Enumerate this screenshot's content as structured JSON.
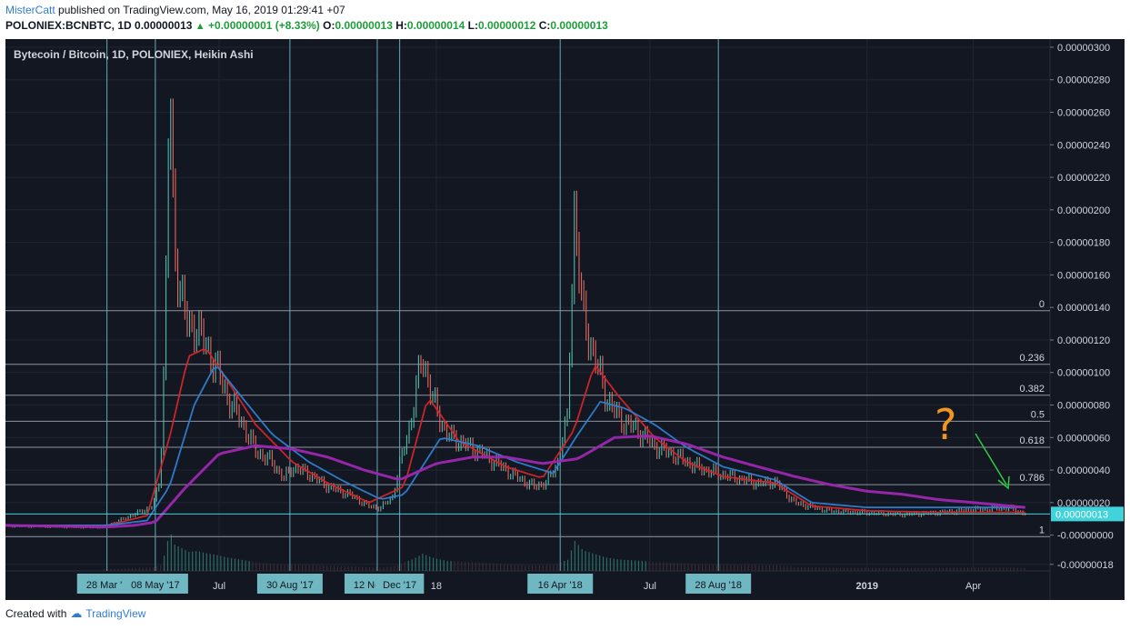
{
  "header": {
    "author": "MisterCatt",
    "published_text": "published on TradingView.com, May 16, 2019 01:29:41 +07",
    "symbol": "POLONIEX:BCNBTC, 1D",
    "last": "0.00000013",
    "change": "+0.00000001 (+8.33%)",
    "open_label": "O:",
    "open": "0.00000013",
    "high_label": "H:",
    "high": "0.00000014",
    "low_label": "L:",
    "low": "0.00000012",
    "close_label": "C:",
    "close": "0.00000013"
  },
  "footer": {
    "created_with": "Created with",
    "brand": "TradingView"
  },
  "colors": {
    "background": "#131722",
    "grid": "#1f2633",
    "candle_up": "#53b9a7",
    "candle_down": "#e0675f",
    "ma_red": "#d2262b",
    "ma_blue": "#2e7fd0",
    "ma_purple": "#9c27b0",
    "fib": "#8d939f",
    "vline": "#65aab4",
    "price_line": "#41d3dc",
    "question": "#f29422",
    "arrow": "#2ecc40"
  },
  "chart_data": {
    "type": "line",
    "title": "Bytecoin / Bitcoin, 1D, POLONIEX, Heikin Ashi",
    "y_ticks": [
      "0.00000300",
      "0.00000280",
      "0.00000260",
      "0.00000240",
      "0.00000220",
      "0.00000200",
      "0.00000180",
      "0.00000160",
      "0.00000140",
      "0.00000120",
      "0.00000100",
      "0.00000080",
      "0.00000060",
      "0.00000040",
      "0.00000020",
      "-0.00000000",
      "-0.00000018"
    ],
    "y_tick_values": [
      300,
      280,
      260,
      240,
      220,
      200,
      180,
      160,
      140,
      120,
      100,
      80,
      60,
      40,
      20,
      0,
      -18
    ],
    "y_unit_note": "values in 1e-8 BTC",
    "ylim": [
      -22,
      305
    ],
    "x_range": [
      "2017-01-01",
      "2019-06-05"
    ],
    "x_ticks": [
      {
        "date": "2017-07-01",
        "label": "Jul"
      },
      {
        "date": "2018-01-01",
        "label": "18"
      },
      {
        "date": "2018-07-01",
        "label": "Jul"
      },
      {
        "date": "2019-01-01",
        "label": "2019"
      },
      {
        "date": "2019-04-01",
        "label": "Apr"
      }
    ],
    "vertical_markers": [
      {
        "date": "2017-03-28",
        "label": "28 Mar '1"
      },
      {
        "date": "2017-05-08",
        "label": "08 May '17"
      },
      {
        "date": "2017-08-30",
        "label": "30 Aug '17"
      },
      {
        "date": "2017-11-12",
        "label": "12 Nov '17"
      },
      {
        "date": "2017-12-01",
        "label": "Dec '17"
      },
      {
        "date": "2018-04-16",
        "label": "16 Apr '18"
      },
      {
        "date": "2018-08-28",
        "label": "28 Aug '18"
      }
    ],
    "fib_levels": [
      {
        "label": "0",
        "value": 138
      },
      {
        "label": "0.236",
        "value": 105
      },
      {
        "label": "0.382",
        "value": 86
      },
      {
        "label": "0.5",
        "value": 70
      },
      {
        "label": "0.618",
        "value": 54
      },
      {
        "label": "0.786",
        "value": 31
      },
      {
        "label": "1",
        "value": -1
      }
    ],
    "current_price": {
      "label": "0.00000013",
      "value": 13
    },
    "price_series": {
      "x": [
        "2017-01-01",
        "2017-03-20",
        "2017-03-28",
        "2017-04-20",
        "2017-05-06",
        "2017-05-12",
        "2017-05-16",
        "2017-05-20",
        "2017-05-24",
        "2017-05-30",
        "2017-06-05",
        "2017-06-12",
        "2017-06-20",
        "2017-06-28",
        "2017-07-08",
        "2017-07-20",
        "2017-08-01",
        "2017-08-15",
        "2017-08-25",
        "2017-09-01",
        "2017-09-15",
        "2017-10-01",
        "2017-10-20",
        "2017-11-05",
        "2017-11-15",
        "2017-11-25",
        "2017-12-05",
        "2017-12-12",
        "2017-12-20",
        "2017-12-28",
        "2018-01-10",
        "2018-01-20",
        "2018-02-05",
        "2018-02-20",
        "2018-03-10",
        "2018-03-25",
        "2018-04-05",
        "2018-04-14",
        "2018-04-18",
        "2018-04-22",
        "2018-04-28",
        "2018-05-05",
        "2018-05-15",
        "2018-05-25",
        "2018-06-05",
        "2018-06-20",
        "2018-07-05",
        "2018-07-20",
        "2018-08-10",
        "2018-08-28",
        "2018-09-15",
        "2018-10-01",
        "2018-10-15",
        "2018-11-01",
        "2018-12-01",
        "2019-01-01",
        "2019-02-01",
        "2019-03-01",
        "2019-04-01",
        "2019-05-01",
        "2019-05-16"
      ],
      "values": [
        6,
        5,
        6,
        13,
        18,
        35,
        120,
        280,
        175,
        150,
        125,
        130,
        115,
        105,
        85,
        70,
        52,
        45,
        35,
        42,
        38,
        30,
        25,
        18,
        17,
        24,
        55,
        75,
        112,
        85,
        62,
        58,
        52,
        45,
        36,
        30,
        33,
        45,
        60,
        70,
        200,
        135,
        110,
        85,
        72,
        65,
        55,
        50,
        42,
        38,
        35,
        32,
        33,
        20,
        15,
        14,
        13,
        14,
        16,
        17,
        13
      ]
    },
    "series": [
      {
        "name": "",
        "role": "fast MA",
        "color": "#d2262b",
        "x": [
          "2017-01-01",
          "2017-03-28",
          "2017-05-01",
          "2017-05-20",
          "2017-06-05",
          "2017-06-20",
          "2017-07-08",
          "2017-08-01",
          "2017-09-01",
          "2017-10-01",
          "2017-11-05",
          "2017-12-05",
          "2017-12-25",
          "2018-01-20",
          "2018-03-01",
          "2018-04-01",
          "2018-04-28",
          "2018-05-15",
          "2018-06-05",
          "2018-07-05",
          "2018-08-01",
          "2018-09-01",
          "2018-10-15",
          "2018-11-15",
          "2019-01-01",
          "2019-03-01",
          "2019-05-16"
        ],
        "values": [
          6,
          6,
          12,
          60,
          110,
          115,
          95,
          68,
          45,
          32,
          20,
          30,
          85,
          58,
          42,
          35,
          65,
          105,
          85,
          60,
          45,
          36,
          32,
          18,
          15,
          14,
          14
        ]
      },
      {
        "name": "",
        "role": "medium MA",
        "color": "#2e7fd0",
        "x": [
          "2017-01-01",
          "2017-03-28",
          "2017-05-01",
          "2017-05-20",
          "2017-06-10",
          "2017-06-28",
          "2017-07-20",
          "2017-08-15",
          "2017-09-15",
          "2017-10-15",
          "2017-11-15",
          "2017-12-05",
          "2018-01-05",
          "2018-02-05",
          "2018-03-10",
          "2018-04-10",
          "2018-05-01",
          "2018-05-20",
          "2018-06-10",
          "2018-07-05",
          "2018-08-01",
          "2018-09-01",
          "2018-10-15",
          "2018-11-15",
          "2019-01-01",
          "2019-03-01",
          "2019-05-16"
        ],
        "values": [
          6,
          6,
          9,
          30,
          80,
          105,
          85,
          62,
          45,
          33,
          22,
          25,
          60,
          55,
          45,
          38,
          62,
          82,
          78,
          68,
          54,
          42,
          34,
          20,
          17,
          17,
          17
        ]
      },
      {
        "name": "",
        "role": "slow MA",
        "color": "#9c27b0",
        "x": [
          "2017-01-01",
          "2017-03-28",
          "2017-04-20",
          "2017-05-08",
          "2017-06-01",
          "2017-07-01",
          "2017-08-01",
          "2017-09-01",
          "2017-10-01",
          "2017-11-01",
          "2017-12-01",
          "2018-01-01",
          "2018-02-01",
          "2018-03-01",
          "2018-04-01",
          "2018-05-01",
          "2018-06-01",
          "2018-07-01",
          "2018-08-01",
          "2018-09-01",
          "2018-10-01",
          "2018-11-01",
          "2018-12-01",
          "2019-01-01",
          "2019-02-01",
          "2019-03-01",
          "2019-04-01",
          "2019-05-16"
        ],
        "values": [
          6,
          5,
          6,
          8,
          28,
          50,
          55,
          53,
          48,
          40,
          34,
          44,
          48,
          48,
          44,
          47,
          60,
          61,
          56,
          48,
          42,
          36,
          31,
          27,
          25,
          22,
          20,
          17
        ]
      }
    ],
    "annotations": {
      "question_mark": "?",
      "arrow": "down-right"
    }
  }
}
